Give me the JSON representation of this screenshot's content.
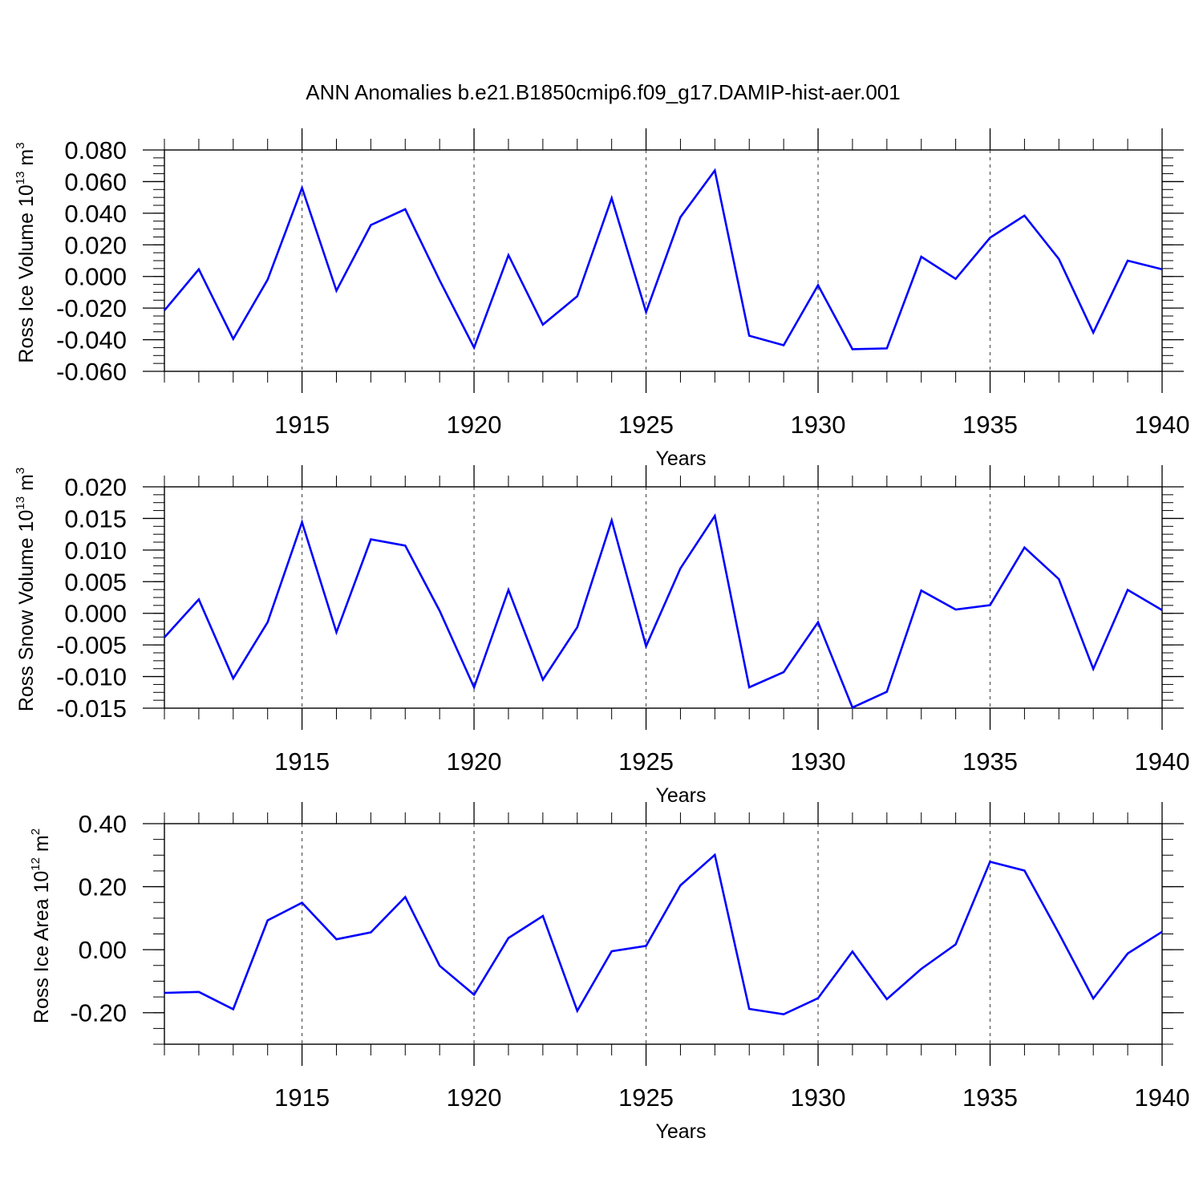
{
  "title": "ANN Anomalies b.e21.B1850cmip6.f09_g17.DAMIP-hist-aer.001",
  "colors": {
    "line": "#0000ff",
    "axis": "#000000",
    "grid": "#555555"
  },
  "chart_data": [
    {
      "type": "line",
      "panel": "ross-ice-volume",
      "ylabel": {
        "text": "Ross Ice Volume 10",
        "exp": "13",
        "unit": " m",
        "unit_exp": "3"
      },
      "xlabel": "Years",
      "xlim": [
        1911,
        1940
      ],
      "ylim": [
        -0.06,
        0.08
      ],
      "yticks": [
        -0.06,
        -0.04,
        -0.02,
        0.0,
        0.02,
        0.04,
        0.06,
        0.08
      ],
      "ytick_labels": [
        "-0.060",
        "-0.040",
        "-0.020",
        "0.000",
        "0.020",
        "0.040",
        "0.060",
        "0.080"
      ],
      "yminor_step": 0.005,
      "xticks": [
        1915,
        1920,
        1925,
        1930,
        1935,
        1940
      ],
      "xtick_labels": [
        "1915",
        "1920",
        "1925",
        "1930",
        "1935",
        "1940"
      ],
      "x": [
        1911,
        1912,
        1913,
        1914,
        1915,
        1916,
        1917,
        1918,
        1919,
        1920,
        1921,
        1922,
        1923,
        1924,
        1925,
        1926,
        1927,
        1928,
        1929,
        1930,
        1931,
        1932,
        1933,
        1934,
        1935,
        1936,
        1937,
        1938,
        1939,
        1940
      ],
      "values": [
        -0.0215,
        0.0045,
        -0.0395,
        -0.002,
        0.056,
        -0.009,
        0.0325,
        0.0425,
        -0.0025,
        -0.045,
        0.0135,
        -0.0305,
        -0.0125,
        0.0495,
        -0.0225,
        0.0375,
        0.067,
        -0.0375,
        -0.0435,
        -0.0055,
        -0.046,
        -0.0455,
        0.0125,
        -0.0015,
        0.0245,
        0.0385,
        0.011,
        -0.0355,
        0.01,
        0.0045
      ]
    },
    {
      "type": "line",
      "panel": "ross-snow-volume",
      "ylabel": {
        "text": "Ross Snow Volume 10",
        "exp": "13",
        "unit": " m",
        "unit_exp": "3"
      },
      "xlabel": "Years",
      "xlim": [
        1911,
        1940
      ],
      "ylim": [
        -0.015,
        0.02
      ],
      "yticks": [
        -0.015,
        -0.01,
        -0.005,
        0.0,
        0.005,
        0.01,
        0.015,
        0.02
      ],
      "ytick_labels": [
        "-0.015",
        "-0.010",
        "-0.005",
        "0.000",
        "0.005",
        "0.010",
        "0.015",
        "0.020"
      ],
      "yminor_step": 0.00125,
      "xticks": [
        1915,
        1920,
        1925,
        1930,
        1935,
        1940
      ],
      "xtick_labels": [
        "1915",
        "1920",
        "1925",
        "1930",
        "1935",
        "1940"
      ],
      "x": [
        1911,
        1912,
        1913,
        1914,
        1915,
        1916,
        1917,
        1918,
        1919,
        1920,
        1921,
        1922,
        1923,
        1924,
        1925,
        1926,
        1927,
        1928,
        1929,
        1930,
        1931,
        1932,
        1933,
        1934,
        1935,
        1936,
        1937,
        1938,
        1939,
        1940
      ],
      "values": [
        -0.0038,
        0.0022,
        -0.0103,
        -0.0014,
        0.0144,
        -0.003,
        0.0117,
        0.0107,
        0.0004,
        -0.0117,
        0.0037,
        -0.0105,
        -0.0022,
        0.0147,
        -0.0052,
        0.0071,
        0.0154,
        -0.0117,
        -0.0093,
        -0.0014,
        -0.0149,
        -0.0124,
        0.0036,
        0.0006,
        0.0013,
        0.0104,
        0.0054,
        -0.0088,
        0.0037,
        0.0005
      ]
    },
    {
      "type": "line",
      "panel": "ross-ice-area",
      "ylabel": {
        "text": "Ross Ice Area 10",
        "exp": "12",
        "unit": " m",
        "unit_exp": "2"
      },
      "xlabel": "Years",
      "xlim": [
        1911,
        1940
      ],
      "ylim": [
        -0.3,
        0.4
      ],
      "yticks": [
        -0.2,
        0.0,
        0.2,
        0.4
      ],
      "ytick_labels": [
        "-0.20",
        "0.00",
        "0.20",
        "0.40"
      ],
      "yminor_step": 0.05,
      "xticks": [
        1915,
        1920,
        1925,
        1930,
        1935,
        1940
      ],
      "xtick_labels": [
        "1915",
        "1920",
        "1925",
        "1930",
        "1935",
        "1940"
      ],
      "x": [
        1911,
        1912,
        1913,
        1914,
        1915,
        1916,
        1917,
        1918,
        1919,
        1920,
        1921,
        1922,
        1923,
        1924,
        1925,
        1926,
        1927,
        1928,
        1929,
        1930,
        1931,
        1932,
        1933,
        1934,
        1935,
        1936,
        1937,
        1938,
        1939,
        1940
      ],
      "values": [
        -0.137,
        -0.134,
        -0.189,
        0.093,
        0.149,
        0.033,
        0.055,
        0.167,
        -0.051,
        -0.143,
        0.037,
        0.107,
        -0.194,
        -0.005,
        0.012,
        0.204,
        0.301,
        -0.188,
        -0.205,
        -0.154,
        -0.006,
        -0.157,
        -0.061,
        0.017,
        0.279,
        0.251,
        0.052,
        -0.155,
        -0.012,
        0.057
      ]
    }
  ]
}
